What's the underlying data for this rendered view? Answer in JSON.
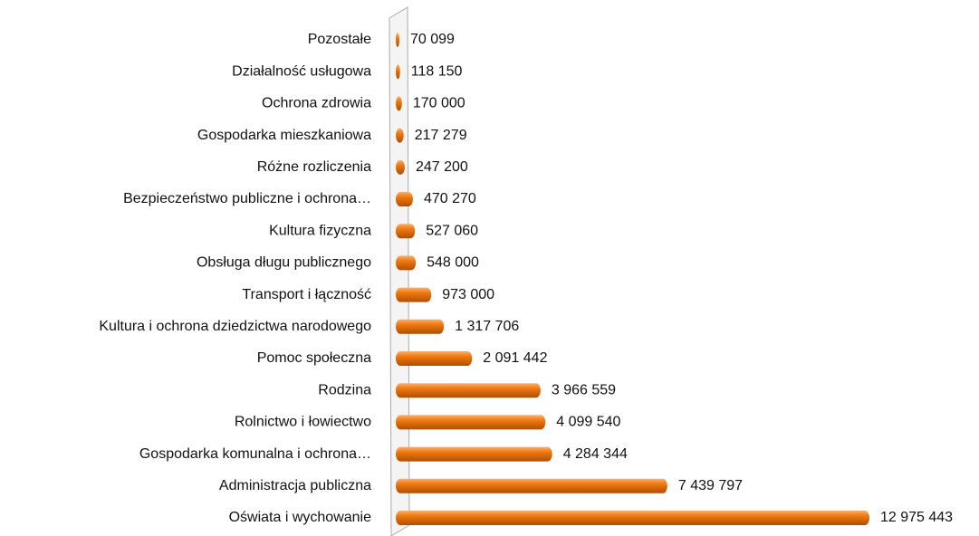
{
  "chart_data": {
    "type": "bar",
    "orientation": "horizontal",
    "categories": [
      "Pozostałe",
      "Działalność usługowa",
      "Ochrona zdrowia",
      "Gospodarka mieszkaniowa",
      "Różne rozliczenia",
      "Bezpieczeństwo publiczne i ochrona…",
      "Kultura fizyczna",
      "Obsługa długu publicznego",
      "Transport i łączność",
      "Kultura i ochrona dziedzictwa narodowego",
      "Pomoc społeczna",
      "Rodzina",
      "Rolnictwo i łowiectwo",
      "Gospodarka komunalna i ochrona…",
      "Administracja publiczna",
      "Oświata i wychowanie"
    ],
    "values": [
      70099,
      118150,
      170000,
      217279,
      247200,
      470270,
      527060,
      548000,
      973000,
      1317706,
      2091442,
      3966559,
      4099540,
      4284344,
      7439797,
      12975443
    ],
    "value_labels": [
      "70 099",
      "118 150",
      "170 000",
      "217 279",
      "247 200",
      "470 270",
      "527 060",
      "548 000",
      "973 000",
      "1 317 706",
      "2 091 442",
      "3 966 559",
      "4 099 540",
      "4 284 344",
      "7 439 797",
      "12 975 443"
    ],
    "color": "#f07a10",
    "xlim": [
      0,
      13000000
    ]
  }
}
